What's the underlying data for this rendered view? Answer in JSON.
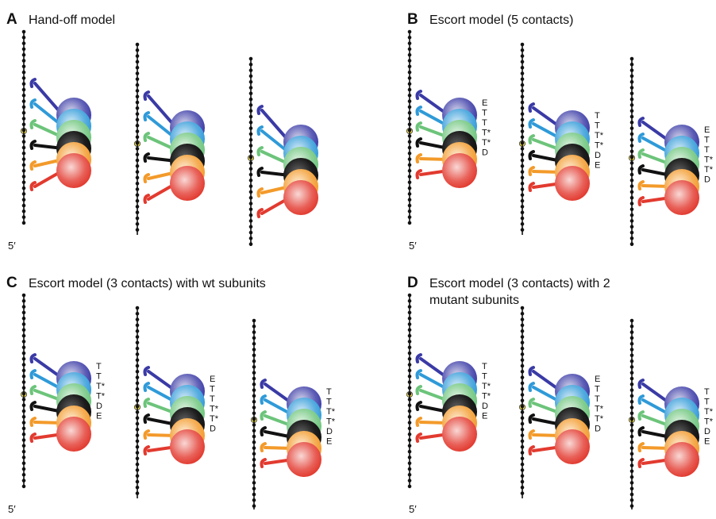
{
  "colors": {
    "strand": "#111111",
    "position_marker": "#f4e24a",
    "subunits": [
      "#3a3aa6",
      "#2f9ad8",
      "#6cc47a",
      "#111111",
      "#f39a2a",
      "#e23a2f"
    ]
  },
  "panels": [
    {
      "id": "A",
      "letter": "A",
      "title": [
        "Hand-off model"
      ],
      "five_prime": "5′",
      "models": [
        {
          "labels": []
        },
        {
          "labels": []
        },
        {
          "labels": []
        }
      ]
    },
    {
      "id": "B",
      "letter": "B",
      "title": [
        "Escort model (5 contacts)"
      ],
      "five_prime": "5′",
      "models": [
        {
          "labels": [
            "E",
            "T",
            "T",
            "T*",
            "T*",
            "D"
          ]
        },
        {
          "labels": [
            "T",
            "T",
            "T*",
            "T*",
            "D",
            "E"
          ]
        },
        {
          "labels": [
            "E",
            "T",
            "T",
            "T*",
            "T*",
            "D"
          ]
        }
      ]
    },
    {
      "id": "C",
      "letter": "C",
      "title": [
        "Escort model (3 contacts) with wt subunits"
      ],
      "five_prime": "5′",
      "models": [
        {
          "labels": [
            "T",
            "T",
            "T*",
            "T*",
            "D",
            "E"
          ]
        },
        {
          "labels": [
            "E",
            "T",
            "T",
            "T*",
            "T*",
            "D"
          ]
        },
        {
          "labels": [
            "T",
            "T",
            "T*",
            "T*",
            "D",
            "E"
          ]
        }
      ]
    },
    {
      "id": "D",
      "letter": "D",
      "title": [
        "Escort model (3 contacts) with 2",
        "mutant subunits"
      ],
      "five_prime": "5′",
      "models": [
        {
          "labels": [
            "T",
            "T",
            "T*",
            "T*",
            "D",
            "E"
          ]
        },
        {
          "labels": [
            "E",
            "T",
            "T",
            "T*",
            "T*",
            "D"
          ]
        },
        {
          "labels": [
            "T",
            "T",
            "T*",
            "T*",
            "D",
            "E"
          ]
        }
      ]
    }
  ]
}
